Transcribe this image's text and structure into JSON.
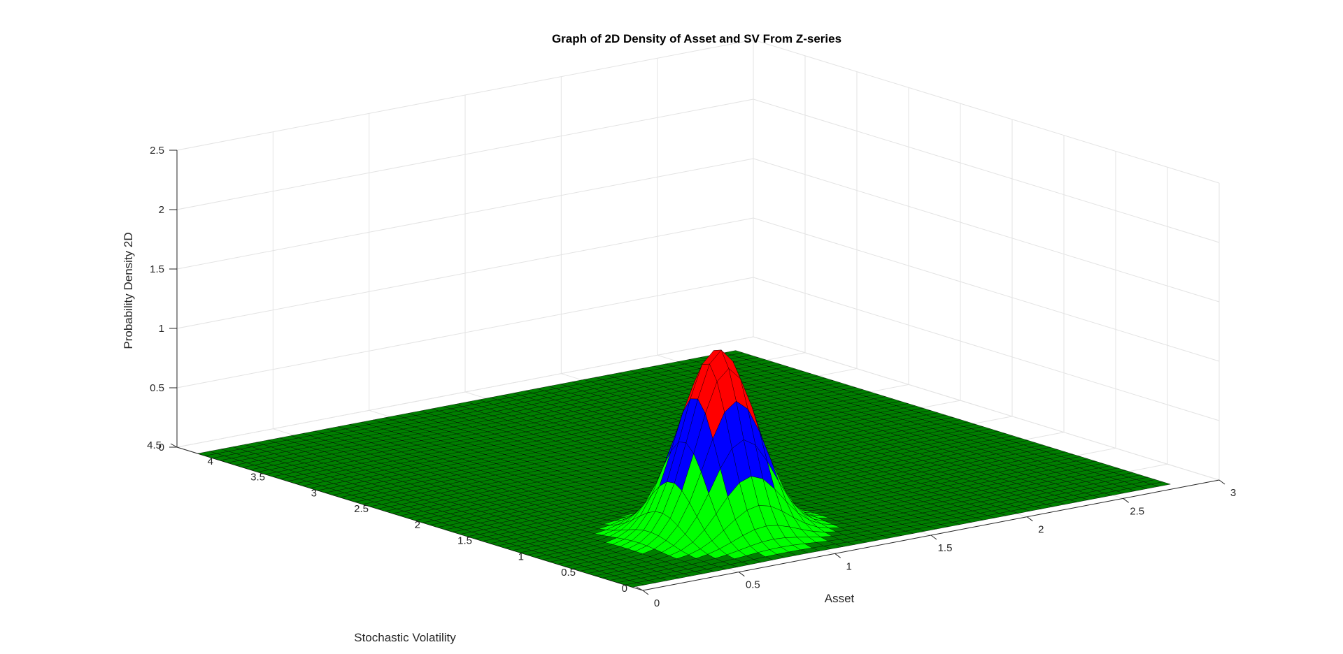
{
  "chart_data": {
    "type": "surface",
    "title": "Graph of 2D Density of Asset and SV From Z-series",
    "xlabel": "Asset",
    "ylabel": "Stochastic Volatility",
    "zlabel": "Probability Density 2D",
    "xlim": [
      0,
      3
    ],
    "ylim": [
      0,
      4.5
    ],
    "zlim": [
      0,
      2.5
    ],
    "x_ticks": [
      "0",
      "0.5",
      "1",
      "1.5",
      "2",
      "2.5",
      "3"
    ],
    "y_ticks": [
      "0",
      "0.5",
      "1",
      "1.5",
      "2",
      "2.5",
      "3",
      "3.5",
      "4",
      "4.5"
    ],
    "z_ticks": [
      "0",
      "0.5",
      "1",
      "1.5",
      "2",
      "2.5"
    ],
    "grid": true,
    "surface": {
      "x_range": [
        0,
        2.8
      ],
      "y_range": [
        0.1,
        4.3
      ],
      "peak": {
        "x": 0.85,
        "y": 0.85,
        "z": 1.55
      },
      "spread": {
        "x": 0.16,
        "y": 0.22
      },
      "color_bands": [
        {
          "max_z": 0.55,
          "color": "#00ff00"
        },
        {
          "max_z": 1.0,
          "color": "#0000ff"
        },
        {
          "max_z": 2.5,
          "color": "#ff0000"
        }
      ],
      "flat_color": "#008000",
      "edge_color": "#000000"
    }
  }
}
